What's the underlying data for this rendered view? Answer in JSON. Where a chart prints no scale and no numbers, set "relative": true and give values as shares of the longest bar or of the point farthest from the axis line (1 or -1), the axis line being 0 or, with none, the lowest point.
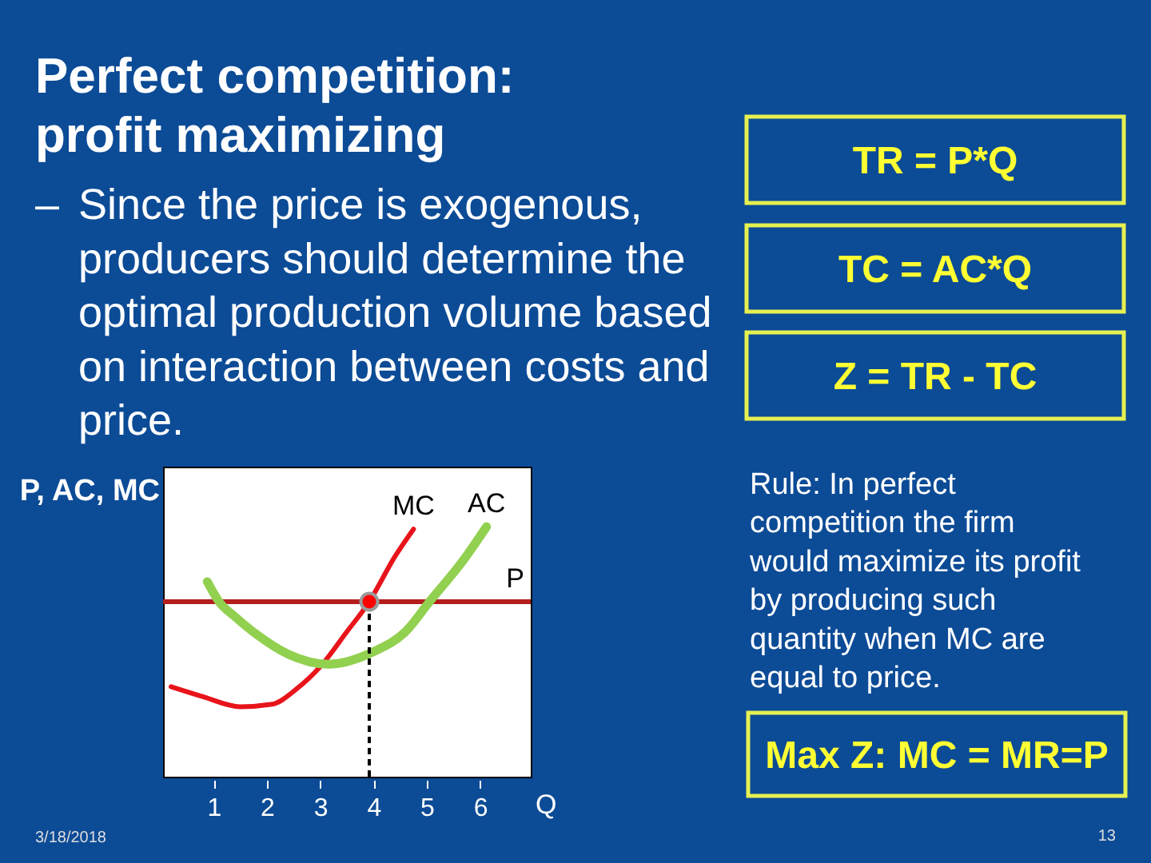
{
  "chart_data": {
    "type": "line",
    "title": "Perfect competition: profit maximizing",
    "subtitle": "– Since the price is exogenous, producers should determine the optimal production volume based on interaction between costs and price.",
    "xlabel": "Q",
    "ylabel": "P, AC, MC",
    "relative": true,
    "xlim": [
      0.05,
      6.95
    ],
    "xticks": [
      1,
      2,
      3,
      4,
      5,
      6
    ],
    "series": [
      {
        "name": "MC",
        "color": "#e8141b",
        "x": [
          0.2,
          0.8,
          1.5,
          2.1,
          2.55,
          3.0,
          3.5,
          3.92,
          4.4,
          4.75
        ],
        "values": [
          0.36,
          0.32,
          0.28,
          0.29,
          0.35,
          0.44,
          0.58,
          0.7,
          0.88,
          0.99
        ]
      },
      {
        "name": "AC",
        "color": "#92d050",
        "x": [
          0.88,
          1.1,
          1.4,
          1.8,
          2.4,
          3.15,
          4.0,
          4.6,
          5.05,
          5.7,
          6.12
        ],
        "values": [
          0.78,
          0.7,
          0.64,
          0.57,
          0.49,
          0.45,
          0.5,
          0.58,
          0.7,
          0.87,
          1.0
        ]
      },
      {
        "color": "#000000",
        "line_style": "dashed",
        "x": [
          3.92,
          3.92
        ],
        "values": [
          0,
          0.7
        ]
      },
      {
        "type": "scatter",
        "color": "#ff0000",
        "x": [
          3.92
        ],
        "values": [
          0.7
        ]
      }
    ],
    "ref_lines": [
      {
        "axis": "y",
        "value": 0.7,
        "label": "P",
        "color": "#b41e1e"
      }
    ],
    "annotations": [
      "TR = P*Q",
      "TC = AC*Q",
      "Z = TR - TC",
      "Rule: In perfect competition the firm would maximize its profit by producing such quantity when MC are equal to price.",
      "Max Z: MC = MR=P",
      "3/18/2018",
      "13"
    ]
  }
}
